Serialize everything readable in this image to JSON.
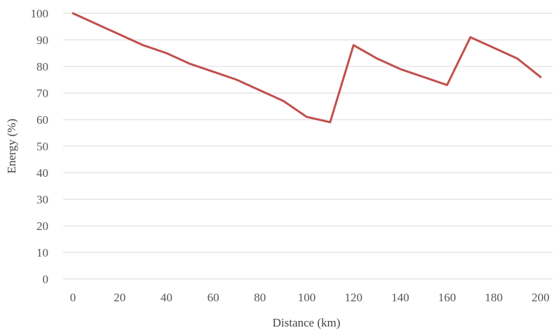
{
  "chart_data": {
    "type": "line",
    "xlabel": "Distance (km)",
    "ylabel": "Energy (%)",
    "xlim": [
      0,
      200
    ],
    "ylim": [
      0,
      100
    ],
    "x_ticks": [
      0,
      20,
      40,
      60,
      80,
      100,
      120,
      140,
      160,
      180,
      200
    ],
    "y_ticks": [
      0,
      10,
      20,
      30,
      40,
      50,
      60,
      70,
      80,
      90,
      100
    ],
    "grid": "horizontal",
    "legend": "none",
    "series": [
      {
        "color": "#c0504d",
        "x": [
          0,
          10,
          20,
          30,
          40,
          50,
          60,
          70,
          80,
          90,
          100,
          110,
          120,
          130,
          140,
          150,
          160,
          170,
          180,
          190,
          200
        ],
        "y": [
          100,
          96,
          92,
          88,
          85,
          81,
          78,
          75,
          71,
          67,
          61,
          59,
          88,
          83,
          79,
          76,
          73,
          91,
          87,
          83,
          76
        ]
      }
    ]
  }
}
